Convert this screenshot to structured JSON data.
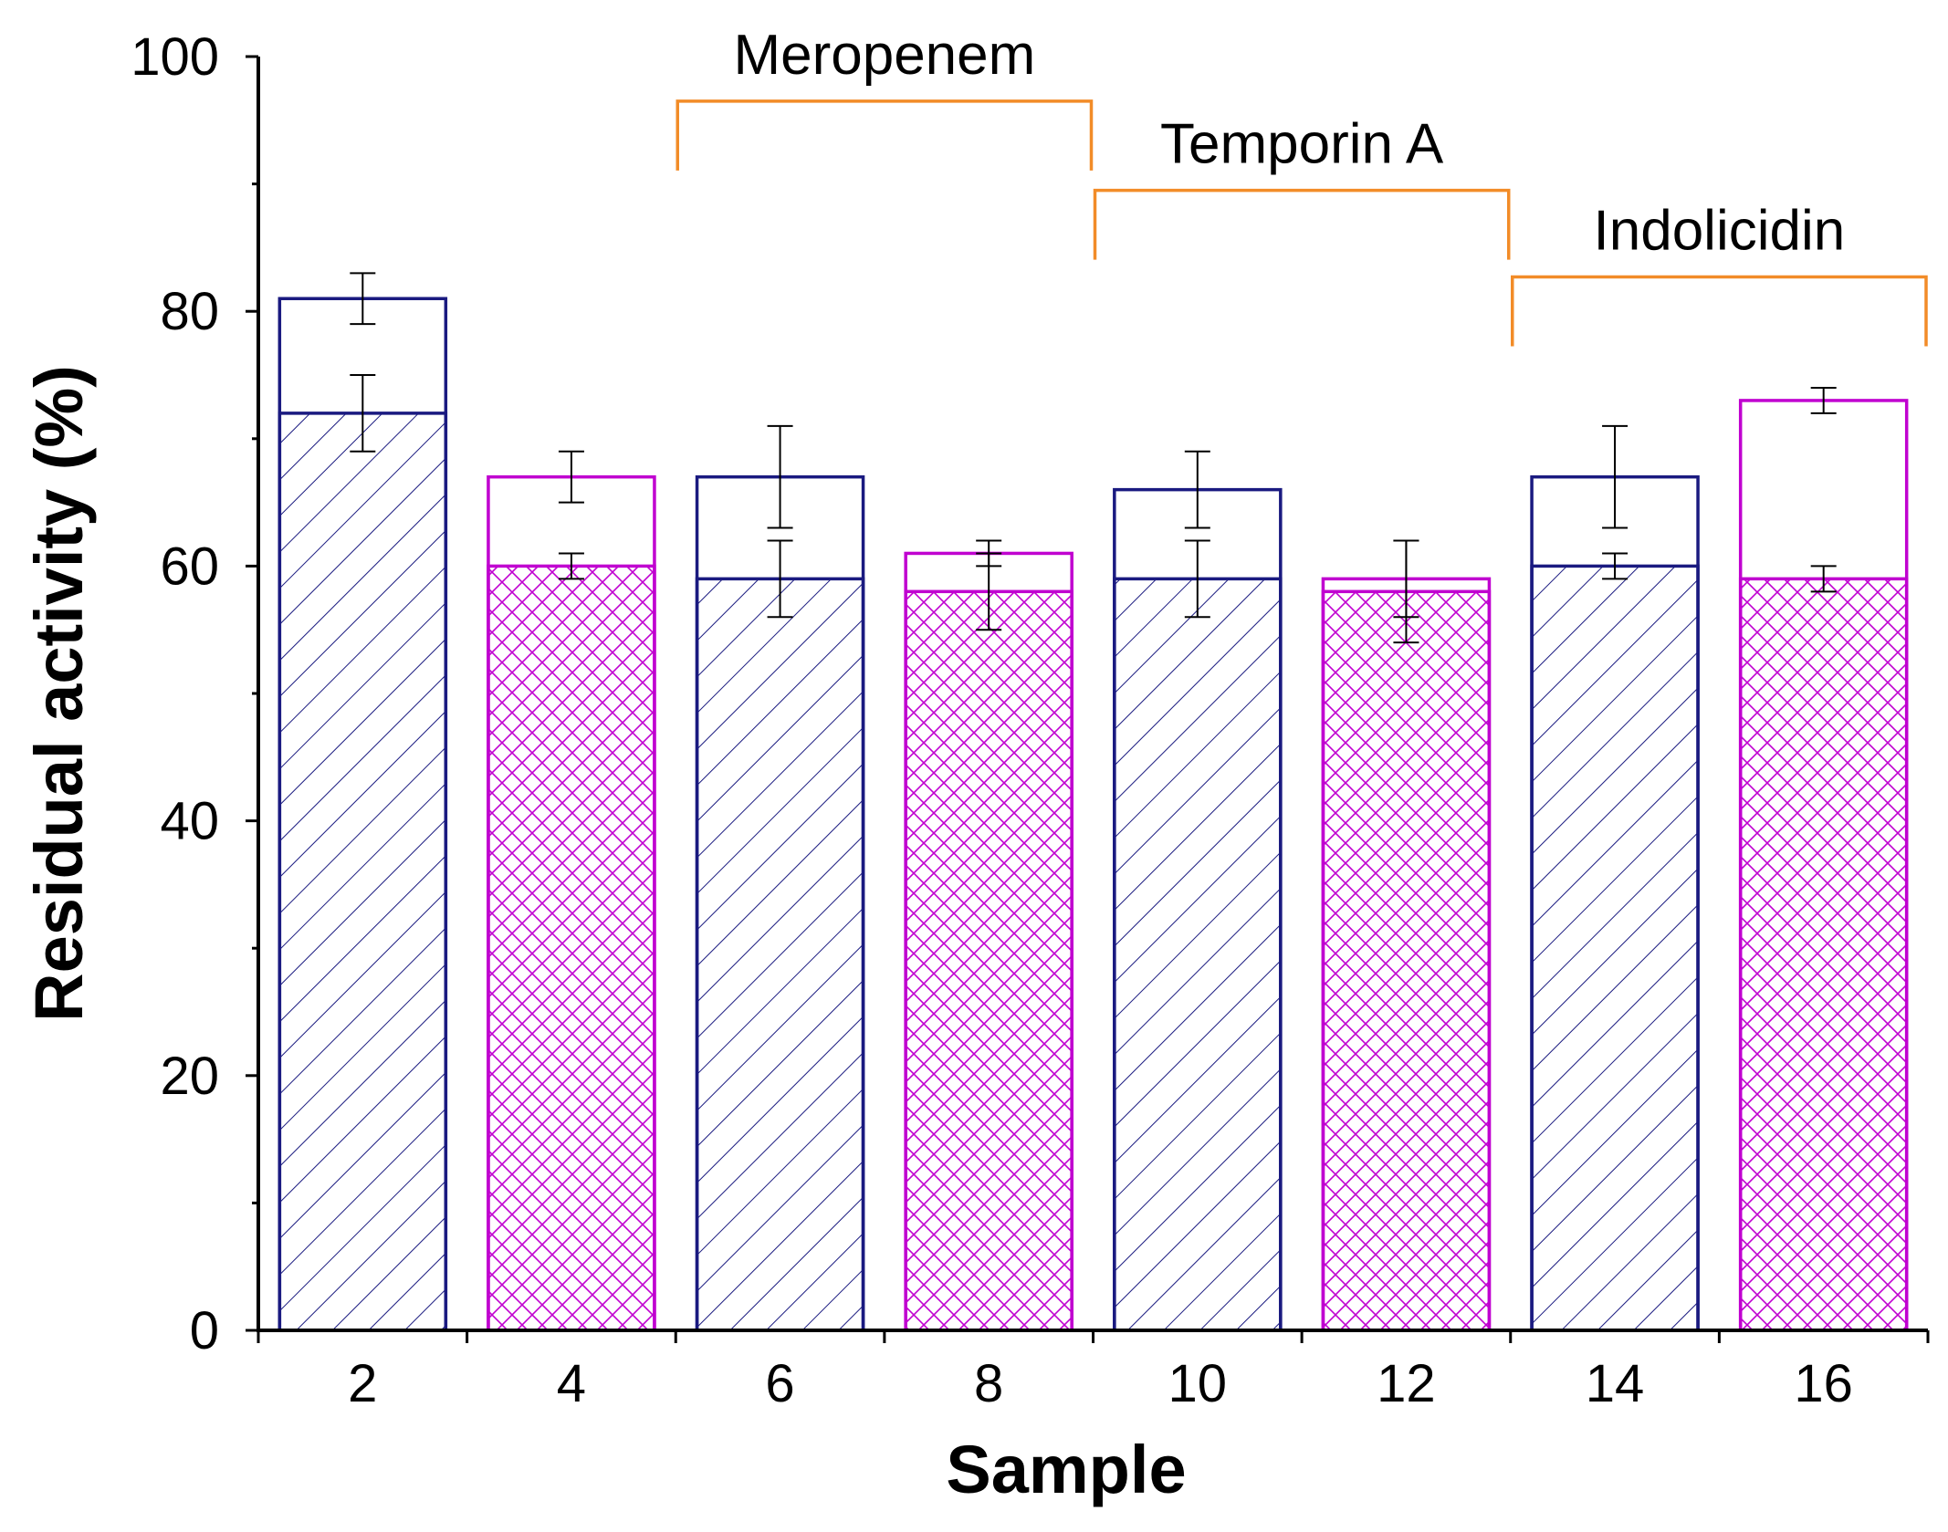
{
  "chart_data": {
    "type": "bar",
    "xlabel": "Sample",
    "ylabel": "Residual activity (%)",
    "ylim": [
      0,
      100
    ],
    "yticks": [
      "0",
      "20",
      "40",
      "60",
      "80",
      "100"
    ],
    "categories": [
      "2",
      "4",
      "6",
      "8",
      "10",
      "12",
      "14",
      "16"
    ],
    "grid": false,
    "colors": {
      "navy": "#1a1a80",
      "magenta": "#c000d0",
      "bracket": "#f28c28"
    },
    "bars": [
      {
        "category": "2",
        "color": "navy",
        "pattern": "diagonal",
        "outer": 81,
        "outer_err": 2,
        "inner": 72,
        "inner_err": 3
      },
      {
        "category": "4",
        "color": "magenta",
        "pattern": "crosshatch",
        "outer": 67,
        "outer_err": 2,
        "inner": 60,
        "inner_err": 1
      },
      {
        "category": "6",
        "color": "navy",
        "pattern": "diagonal",
        "outer": 67,
        "outer_err": 4,
        "inner": 59,
        "inner_err": 3
      },
      {
        "category": "8",
        "color": "magenta",
        "pattern": "crosshatch",
        "outer": 61,
        "outer_err": 1,
        "inner": 58,
        "inner_err": 3
      },
      {
        "category": "10",
        "color": "navy",
        "pattern": "diagonal",
        "outer": 66,
        "outer_err": 3,
        "inner": 59,
        "inner_err": 3
      },
      {
        "category": "12",
        "color": "magenta",
        "pattern": "crosshatch",
        "outer": 59,
        "outer_err": 3,
        "inner": 58,
        "inner_err": 4
      },
      {
        "category": "14",
        "color": "navy",
        "pattern": "diagonal",
        "outer": 67,
        "outer_err": 4,
        "inner": 60,
        "inner_err": 1
      },
      {
        "category": "16",
        "color": "magenta",
        "pattern": "crosshatch",
        "outer": 73,
        "outer_err": 1,
        "inner": 59,
        "inner_err": 1
      }
    ],
    "annotations": [
      {
        "label": "Meropenem",
        "from": "6",
        "to": "8",
        "y": 96.5
      },
      {
        "label": "Temporin A",
        "from": "10",
        "to": "12",
        "y": 89.5
      },
      {
        "label": "Indolicidin",
        "from": "14",
        "to": "16",
        "y": 82.7
      }
    ]
  }
}
